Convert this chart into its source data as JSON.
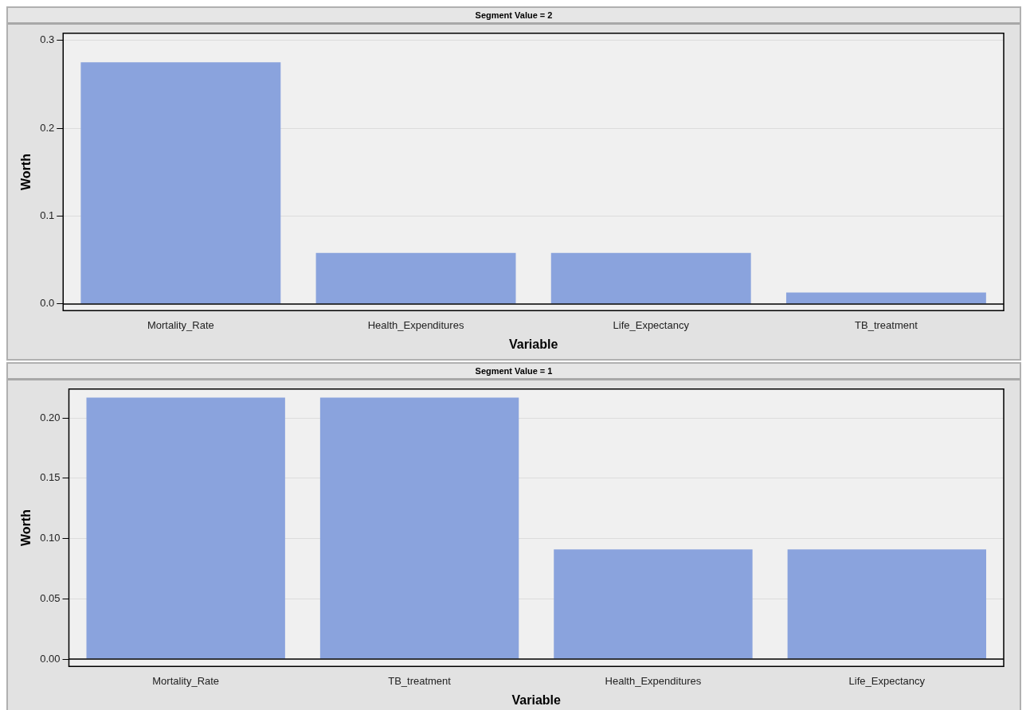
{
  "chart_data": [
    {
      "type": "bar",
      "title": "Segment Value = 2",
      "xlabel": "Variable",
      "ylabel": "Worth",
      "categories": [
        "Mortality_Rate",
        "Health_Expenditures",
        "Life_Expectancy",
        "TB_treatment"
      ],
      "values": [
        0.275,
        0.058,
        0.058,
        0.013
      ],
      "color": "#8aa3dd",
      "ylim": [
        -0.0075,
        0.308
      ],
      "yticks": [
        {
          "value": 0,
          "label": "0.0"
        },
        {
          "value": 0.1,
          "label": "0.1"
        },
        {
          "value": 0.2,
          "label": "0.2"
        },
        {
          "value": 0.3,
          "label": "0.3"
        }
      ],
      "grid": "y"
    },
    {
      "type": "bar",
      "title": "Segment Value = 1",
      "xlabel": "Variable",
      "ylabel": "Worth",
      "categories": [
        "Mortality_Rate",
        "TB_treatment",
        "Health_Expenditures",
        "Life_Expectancy"
      ],
      "values": [
        0.217,
        0.217,
        0.091,
        0.091
      ],
      "color": "#8aa3dd",
      "ylim": [
        -0.006,
        0.224
      ],
      "yticks": [
        {
          "value": 0,
          "label": "0.00"
        },
        {
          "value": 0.05,
          "label": "0.05"
        },
        {
          "value": 0.1,
          "label": "0.10"
        },
        {
          "value": 0.15,
          "label": "0.15"
        },
        {
          "value": 0.2,
          "label": "0.20"
        }
      ],
      "grid": "y"
    }
  ]
}
